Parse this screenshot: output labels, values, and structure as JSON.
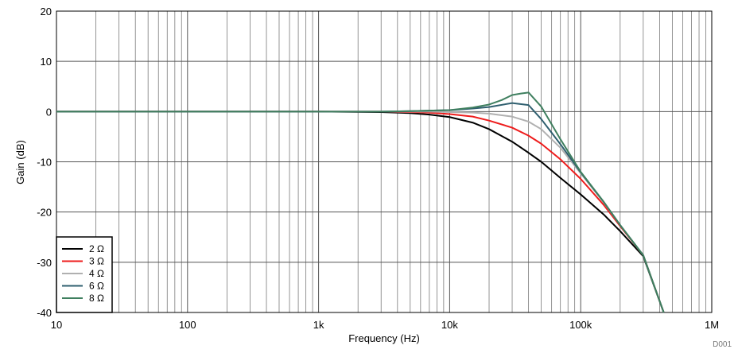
{
  "chart_data": {
    "type": "line",
    "title": "",
    "xlabel": "Frequency (Hz)",
    "ylabel": "Gain (dB)",
    "xscale": "log",
    "xlim": [
      10,
      1000000
    ],
    "ylim": [
      -40,
      20
    ],
    "grid": true,
    "legend_position": "bottom-left",
    "xticks": [
      {
        "value": 10,
        "label": "10"
      },
      {
        "value": 100,
        "label": "100"
      },
      {
        "value": 1000,
        "label": "1k"
      },
      {
        "value": 10000,
        "label": "10k"
      },
      {
        "value": 100000,
        "label": "100k"
      },
      {
        "value": 1000000,
        "label": "1M"
      }
    ],
    "yticks": [
      {
        "value": 20,
        "label": "20"
      },
      {
        "value": 10,
        "label": "10"
      },
      {
        "value": 0,
        "label": "0"
      },
      {
        "value": -10,
        "label": "-10"
      },
      {
        "value": -20,
        "label": "-20"
      },
      {
        "value": -30,
        "label": "-30"
      },
      {
        "value": -40,
        "label": "-40"
      }
    ],
    "series": [
      {
        "name": "2 Ω",
        "color": "#000000",
        "x": [
          10,
          100,
          1000,
          3000,
          5000,
          7000,
          10000,
          15000,
          20000,
          30000,
          40000,
          50000,
          70000,
          100000,
          150000,
          200000,
          300000,
          430000
        ],
        "y": [
          0,
          0,
          0,
          -0.1,
          -0.3,
          -0.6,
          -1.1,
          -2.2,
          -3.5,
          -6.0,
          -8.2,
          -10.0,
          -13.2,
          -16.5,
          -20.5,
          -23.8,
          -28.8,
          -40.0
        ]
      },
      {
        "name": "3 Ω",
        "color": "#ee1c1c",
        "x": [
          10,
          100,
          1000,
          3000,
          5000,
          7000,
          10000,
          15000,
          20000,
          30000,
          40000,
          50000,
          70000,
          100000,
          150000,
          200000,
          300000,
          430000
        ],
        "y": [
          0,
          0,
          0,
          0,
          -0.1,
          -0.2,
          -0.5,
          -1.0,
          -1.8,
          -3.2,
          -4.8,
          -6.4,
          -9.5,
          -13.4,
          -18.6,
          -22.8,
          -28.6,
          -40.0
        ]
      },
      {
        "name": "4 Ω",
        "color": "#b0b0b0",
        "x": [
          10,
          100,
          1000,
          3000,
          5000,
          7000,
          10000,
          15000,
          20000,
          30000,
          40000,
          50000,
          70000,
          100000,
          150000,
          200000,
          300000,
          430000
        ],
        "y": [
          0,
          0,
          0,
          0,
          0,
          0,
          -0.1,
          -0.2,
          -0.4,
          -1.0,
          -2.0,
          -3.5,
          -7.2,
          -12.3,
          -18.1,
          -22.6,
          -28.6,
          -40.0
        ]
      },
      {
        "name": "6 Ω",
        "color": "#2f5f6f",
        "x": [
          10,
          100,
          1000,
          3000,
          5000,
          7000,
          10000,
          15000,
          20000,
          30000,
          40000,
          50000,
          70000,
          100000,
          150000,
          200000,
          300000,
          430000
        ],
        "y": [
          0,
          0,
          0,
          0,
          0.1,
          0.2,
          0.3,
          0.6,
          0.9,
          1.7,
          1.3,
          -1.5,
          -6.5,
          -12.1,
          -18.0,
          -22.6,
          -28.6,
          -40.0
        ]
      },
      {
        "name": "8 Ω",
        "color": "#3f7f5f",
        "x": [
          10,
          100,
          1000,
          3000,
          5000,
          7000,
          10000,
          15000,
          20000,
          25000,
          30000,
          35000,
          40000,
          50000,
          70000,
          100000,
          150000,
          200000,
          300000,
          430000
        ],
        "y": [
          0,
          0,
          0,
          0,
          0.1,
          0.2,
          0.3,
          0.8,
          1.4,
          2.3,
          3.3,
          3.6,
          3.8,
          1.0,
          -5.5,
          -12.0,
          -18.0,
          -22.6,
          -28.6,
          -40.0
        ]
      }
    ]
  },
  "watermark": "D001"
}
